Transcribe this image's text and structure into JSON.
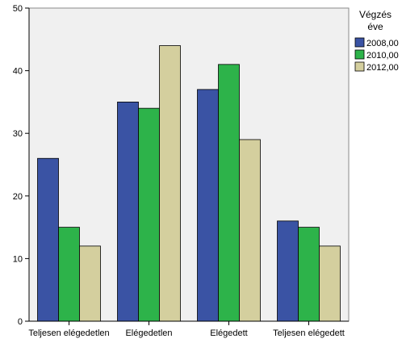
{
  "chart_data": {
    "type": "bar",
    "title": "",
    "xlabel": "",
    "ylabel": "",
    "categories": [
      "Teljesen elégedetlen",
      "Elégedetlen",
      "Elégedett",
      "Teljesen elégedett"
    ],
    "series": [
      {
        "name": "2008,00",
        "values": [
          26,
          35,
          37,
          16
        ],
        "color": "#3a53a4"
      },
      {
        "name": "2010,00",
        "values": [
          15,
          34,
          41,
          15
        ],
        "color": "#2db34a"
      },
      {
        "name": "2012,00",
        "values": [
          12,
          44,
          29,
          12
        ],
        "color": "#d4cf9e"
      }
    ],
    "ylim": [
      0,
      50
    ],
    "yticks": [
      0,
      10,
      20,
      30,
      40,
      50
    ],
    "grid": false,
    "legend": {
      "title_line1": "Végzés",
      "title_line2": "éve",
      "placement": "right"
    },
    "colors": {
      "plot_background": "#f0f0f0",
      "axis": "#000000",
      "border": "#8a8a8a"
    }
  }
}
